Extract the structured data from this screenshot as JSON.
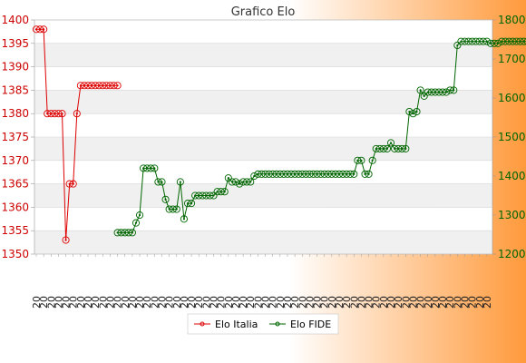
{
  "chart_data": {
    "type": "line",
    "title": "Grafico Elo",
    "background_gradient": [
      "#ffffff",
      "#ff9a3c"
    ],
    "plot_band_colors": [
      "#f0f0f0",
      "#ffffff"
    ],
    "grid": true,
    "legend_position": "bottom-center",
    "y_left": {
      "min": 1350,
      "max": 1400,
      "ticks": [
        1350,
        1355,
        1360,
        1365,
        1370,
        1375,
        1380,
        1385,
        1390,
        1395,
        1400
      ],
      "color": "#cc0000"
    },
    "y_right": {
      "min": 1200,
      "max": 1800,
      "ticks": [
        1200,
        1300,
        1400,
        1500,
        1600,
        1700,
        1800
      ],
      "color": "#006600"
    },
    "x_tick_prefix": "20",
    "x_count": 124,
    "series": [
      {
        "name": "Elo Italia",
        "axis": "left",
        "color": "#dd0000",
        "start_index": 0,
        "values": [
          1398,
          1398,
          1398,
          1380,
          1380,
          1380,
          1380,
          1380,
          1353,
          1365,
          1365,
          1380,
          1386,
          1386,
          1386,
          1386,
          1386,
          1386,
          1386,
          1386,
          1386,
          1386,
          1386
        ]
      },
      {
        "name": "Elo FIDE",
        "axis": "right",
        "color": "#006600",
        "start_index": 22,
        "values": [
          1255,
          1255,
          1255,
          1255,
          1255,
          1280,
          1300,
          1420,
          1420,
          1420,
          1420,
          1385,
          1385,
          1340,
          1315,
          1315,
          1315,
          1385,
          1290,
          1330,
          1330,
          1350,
          1350,
          1350,
          1350,
          1350,
          1350,
          1360,
          1360,
          1360,
          1395,
          1385,
          1385,
          1380,
          1385,
          1385,
          1385,
          1400,
          1405,
          1405,
          1405,
          1405,
          1405,
          1405,
          1405,
          1405,
          1405,
          1405,
          1405,
          1405,
          1405,
          1405,
          1405,
          1405,
          1405,
          1405,
          1405,
          1405,
          1405,
          1405,
          1405,
          1405,
          1405,
          1405,
          1405,
          1440,
          1440,
          1405,
          1405,
          1440,
          1470,
          1470,
          1470,
          1470,
          1485,
          1470,
          1470,
          1470,
          1470,
          1565,
          1560,
          1565,
          1620,
          1605,
          1615,
          1615,
          1615,
          1615,
          1615,
          1615,
          1620,
          1620,
          1735,
          1745,
          1745,
          1745,
          1745,
          1745,
          1745,
          1745,
          1745,
          1740,
          1740,
          1740,
          1745,
          1745,
          1745,
          1745,
          1745,
          1745,
          1745,
          1745,
          1740
        ]
      }
    ]
  }
}
